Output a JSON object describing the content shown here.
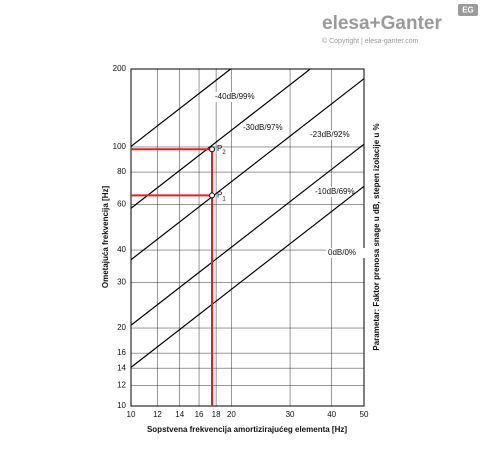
{
  "header": {
    "brand": "elesa+Ganter",
    "badge": "EG",
    "copyright": "© Copyright | elesa-ganter.com"
  },
  "chart_data": {
    "type": "line",
    "x_label": "Sopstvena frekvencija amortizirajućeg elementa [Hz]",
    "y_label": "Ometajuća frekvencija [Hz]",
    "right_label": "Parametar: Faktor prenosa snage u dB, stepen izolacije u %",
    "log_x": true,
    "log_y": true,
    "grid": true,
    "xlim": [
      10,
      50
    ],
    "xticks": [
      10,
      12,
      14,
      16,
      18,
      20,
      30,
      40,
      50
    ],
    "ylim": [
      10,
      200
    ],
    "yticks": [
      10,
      12,
      14,
      16,
      20,
      30,
      40,
      60,
      80,
      100,
      200
    ],
    "series": [
      {
        "name": "-40dB/99%",
        "color": "#000000",
        "x": [
          10,
          19.9
        ],
        "values": [
          100.5,
          200
        ]
      },
      {
        "name": "-30dB/97%",
        "color": "#000000",
        "x": [
          10,
          34.5
        ],
        "values": [
          58,
          200
        ]
      },
      {
        "name": "-23dB/92%",
        "color": "#000000",
        "x": [
          10,
          50
        ],
        "values": [
          36.7,
          183.5
        ]
      },
      {
        "name": "-10dB/69%",
        "color": "#000000",
        "x": [
          10,
          50
        ],
        "values": [
          20.5,
          102.5
        ]
      },
      {
        "name": "0dB/0%",
        "color": "#000000",
        "x": [
          10,
          50
        ],
        "values": [
          14.1,
          70.5
        ]
      }
    ],
    "points": [
      {
        "label": "P",
        "subscript": "1",
        "x": 17.5,
        "y": 65
      },
      {
        "label": "P",
        "subscript": "2",
        "x": 17.5,
        "y": 98
      }
    ],
    "marker_color": "#e41e26"
  }
}
